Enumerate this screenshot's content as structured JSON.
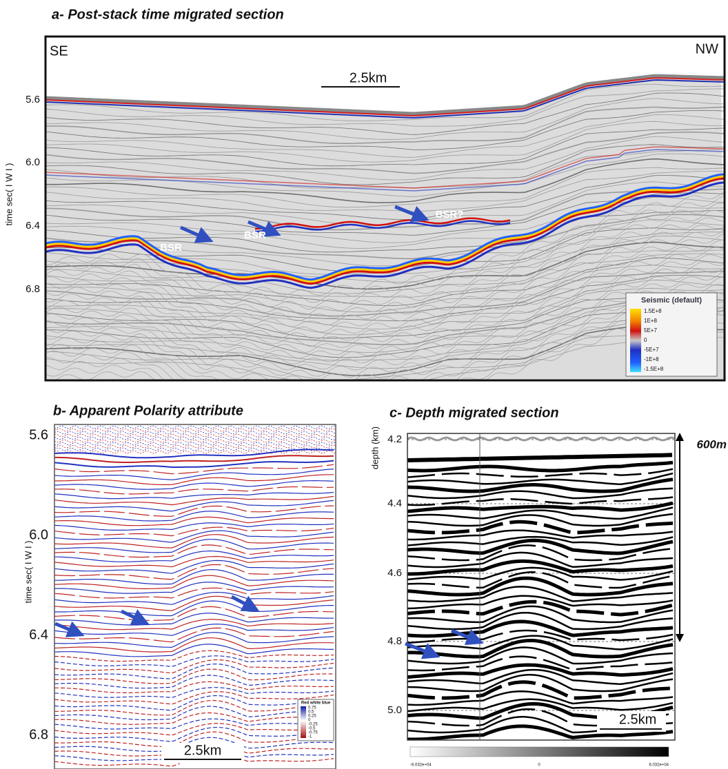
{
  "panel_a": {
    "title": "a- Post-stack time migrated section",
    "y_axis_label": "time sec( I W I )",
    "y_ticks": [
      "5.6",
      "6.0",
      "6.4",
      "6.8"
    ],
    "left_label": "SE",
    "right_label": "NW",
    "scale_bar": "2.5km",
    "annotations": [
      "BSR",
      "BSR",
      "BSR?"
    ],
    "legend": {
      "title": "Seismic (default)",
      "labels": [
        "1.5E+8",
        "1E+8",
        "5E+7",
        "0",
        "-5E+7",
        "-1E+8",
        "-1.5E+8"
      ]
    }
  },
  "panel_b": {
    "title": "b- Apparent Polarity attribute",
    "y_axis_label": "time sec( I W I )",
    "y_ticks": [
      "5.6",
      "6.0",
      "6.4",
      "6.8"
    ],
    "scale_bar": "2.5km",
    "legend": {
      "title": "Red white blue",
      "labels": [
        "0.75",
        "0.5",
        "0.25",
        "0",
        "-0.25",
        "-0.5",
        "-0.75",
        "-1"
      ]
    }
  },
  "panel_c": {
    "title": "c- Depth migrated section",
    "y_axis_label": "depth (km)",
    "y_ticks": [
      "4.2",
      "4.4",
      "4.6",
      "4.8",
      "5.0"
    ],
    "scale_bar": "2.5km",
    "thickness_label": "600m",
    "colorbar_labels": [
      "-6.032e+04",
      "0",
      "6.032e+04"
    ]
  }
}
